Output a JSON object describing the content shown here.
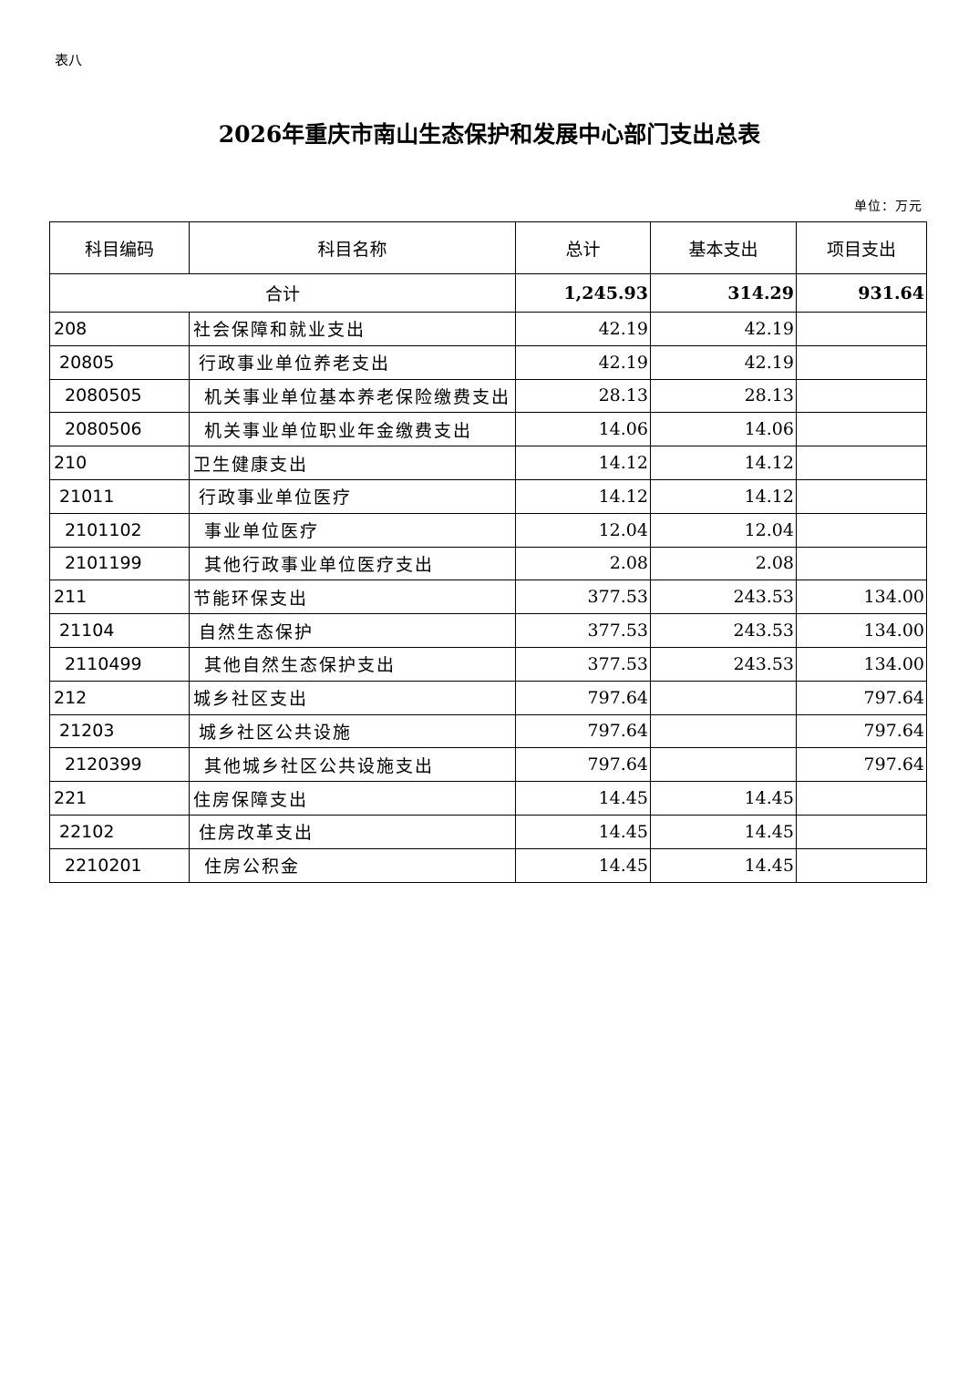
{
  "doc_label": "表八",
  "title": "2026年重庆市南山生态保护和发展中心部门支出总表",
  "unit": "单位：万元",
  "headers": [
    "科目编码",
    "科目名称",
    "总计",
    "基本支出",
    "项目支出"
  ],
  "total": {
    "label": "合计",
    "total": "1,245.93",
    "basic": "314.29",
    "project": "931.64"
  },
  "rows": [
    {
      "code": "208",
      "name": "社会保障和就业支出",
      "total": "42.19",
      "basic": "42.19",
      "project": "",
      "level": 1
    },
    {
      "code": "20805",
      "name": "行政事业单位养老支出",
      "total": "42.19",
      "basic": "42.19",
      "project": "",
      "level": 2
    },
    {
      "code": "2080505",
      "name": "机关事业单位基本养老保险缴费支出",
      "total": "28.13",
      "basic": "28.13",
      "project": "",
      "level": 3
    },
    {
      "code": "2080506",
      "name": "机关事业单位职业年金缴费支出",
      "total": "14.06",
      "basic": "14.06",
      "project": "",
      "level": 3
    },
    {
      "code": "210",
      "name": "卫生健康支出",
      "total": "14.12",
      "basic": "14.12",
      "project": "",
      "level": 1
    },
    {
      "code": "21011",
      "name": "行政事业单位医疗",
      "total": "14.12",
      "basic": "14.12",
      "project": "",
      "level": 2
    },
    {
      "code": "2101102",
      "name": "事业单位医疗",
      "total": "12.04",
      "basic": "12.04",
      "project": "",
      "level": 3
    },
    {
      "code": "2101199",
      "name": "其他行政事业单位医疗支出",
      "total": "2.08",
      "basic": "2.08",
      "project": "",
      "level": 3
    },
    {
      "code": "211",
      "name": "节能环保支出",
      "total": "377.53",
      "basic": "243.53",
      "project": "134.00",
      "level": 1
    },
    {
      "code": "21104",
      "name": "自然生态保护",
      "total": "377.53",
      "basic": "243.53",
      "project": "134.00",
      "level": 2
    },
    {
      "code": "2110499",
      "name": "其他自然生态保护支出",
      "total": "377.53",
      "basic": "243.53",
      "project": "134.00",
      "level": 3
    },
    {
      "code": "212",
      "name": "城乡社区支出",
      "total": "797.64",
      "basic": "",
      "project": "797.64",
      "level": 1
    },
    {
      "code": "21203",
      "name": "城乡社区公共设施",
      "total": "797.64",
      "basic": "",
      "project": "797.64",
      "level": 2
    },
    {
      "code": "2120399",
      "name": "其他城乡社区公共设施支出",
      "total": "797.64",
      "basic": "",
      "project": "797.64",
      "level": 3
    },
    {
      "code": "221",
      "name": "住房保障支出",
      "total": "14.45",
      "basic": "14.45",
      "project": "",
      "level": 1
    },
    {
      "code": "22102",
      "name": "住房改革支出",
      "total": "14.45",
      "basic": "14.45",
      "project": "",
      "level": 2
    },
    {
      "code": "2210201",
      "name": "住房公积金",
      "total": "14.45",
      "basic": "14.45",
      "project": "",
      "level": 3
    }
  ]
}
